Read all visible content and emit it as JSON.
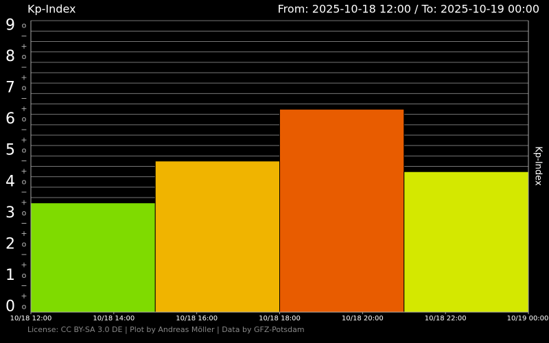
{
  "chart_data": {
    "type": "histogram",
    "title": "Kp-Index",
    "subtitle": "From: 2025-10-18 12:00  /  To: 2025-10-19 00:00",
    "y_label": "Kp-Index",
    "footer": "License: CC BY-SA 3.0 DE | Plot by Andreas Möller | Data by GFZ-Potsdam",
    "bins": [
      "2025-10-18T12:00",
      "2025-10-18T15:00",
      "2025-10-18T18:00",
      "2025-10-18T21:00",
      "2025-10-19T00:00"
    ],
    "values": [
      3.33,
      4.67,
      6.33,
      4.33
    ],
    "colors": [
      "#7fdb00",
      "#f0b400",
      "#e85c00",
      "#d4e800"
    ],
    "xlim": [
      "2025-10-18T12:00",
      "2025-10-19T00:00"
    ],
    "xticks": [
      {
        "value": "2025-10-18T12:00",
        "label": "10/18 12:00"
      },
      {
        "value": "2025-10-18T14:00",
        "label": "10/18 14:00"
      },
      {
        "value": "2025-10-18T16:00",
        "label": "10/18 16:00"
      },
      {
        "value": "2025-10-18T18:00",
        "label": "10/18 18:00"
      },
      {
        "value": "2025-10-18T20:00",
        "label": "10/18 20:00"
      },
      {
        "value": "2025-10-18T22:00",
        "label": "10/18 22:00"
      },
      {
        "value": "2025-10-19T00:00",
        "label": "10/19 00:00"
      }
    ],
    "ylim": [
      -0.17,
      9.17
    ],
    "yticks": [
      0,
      1,
      2,
      3,
      4,
      5,
      6,
      7,
      8,
      9
    ],
    "sublabels": [
      "−",
      "o",
      "+"
    ],
    "grid": true
  }
}
